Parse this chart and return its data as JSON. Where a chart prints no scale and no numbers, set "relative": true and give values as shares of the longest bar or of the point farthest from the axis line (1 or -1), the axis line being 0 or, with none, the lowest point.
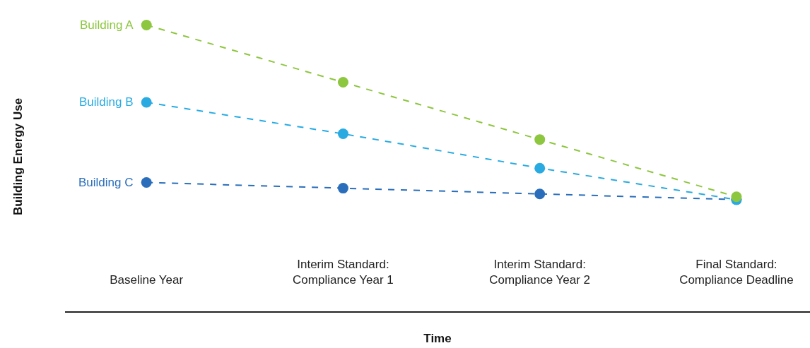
{
  "chart_data": {
    "type": "line",
    "relative": true,
    "xlabel": "Time",
    "ylabel": "Building Energy Use",
    "categories": [
      "Baseline Year",
      "Interim Standard:\nCompliance Year 1",
      "Interim Standard:\nCompliance Year 2",
      "Final Standard:\nCompliance Deadline"
    ],
    "series": [
      {
        "name": "Building A",
        "color": "#8dc63f",
        "values": [
          1,
          0.8,
          0.6,
          0.4
        ]
      },
      {
        "name": "Building B",
        "color": "#29abe2",
        "values": [
          0.73,
          0.62,
          0.5,
          0.39
        ]
      },
      {
        "name": "Building C",
        "color": "#2a6ebb",
        "values": [
          0.45,
          0.43,
          0.41,
          0.39
        ]
      }
    ],
    "marker": "circle",
    "line_style": "dashed",
    "legend": false,
    "grid": false
  }
}
